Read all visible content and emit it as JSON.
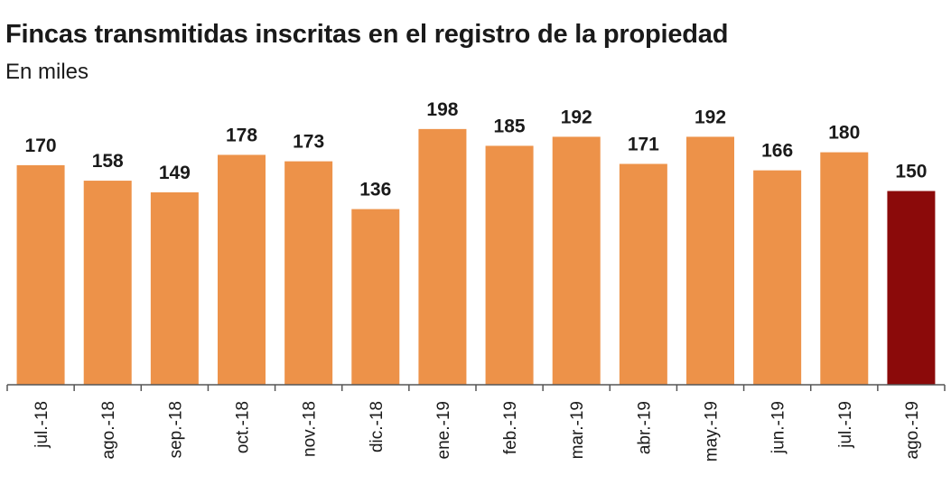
{
  "chart_data": {
    "type": "bar",
    "title": "Fincas transmitidas inscritas en el registro de la propiedad",
    "subtitle": "En miles",
    "categories": [
      "jul.-18",
      "ago.-18",
      "sep.-18",
      "oct.-18",
      "nov.-18",
      "dic.-18",
      "ene.-19",
      "feb.-19",
      "mar.-19",
      "abr.-19",
      "may.-19",
      "jun.-19",
      "jul.-19",
      "ago.-19"
    ],
    "values": [
      170,
      158,
      149,
      178,
      173,
      136,
      198,
      185,
      192,
      171,
      192,
      166,
      180,
      150
    ],
    "ylim": [
      0,
      200
    ],
    "grid": false,
    "legend": "none",
    "data_labels": true,
    "colors": {
      "bar": "#ED9249",
      "highlight": "#8B0A0A",
      "axis": "#555555"
    },
    "highlight_index": 13
  }
}
